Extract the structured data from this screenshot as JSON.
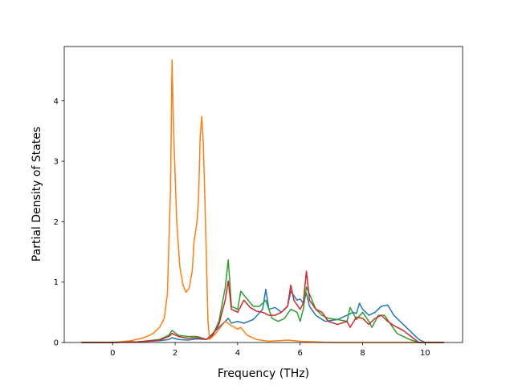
{
  "chart_data": {
    "type": "line",
    "title": "",
    "xlabel": "Frequency (THz)",
    "ylabel": "Partial Density of States",
    "xlim": [
      -1.55,
      11.2
    ],
    "ylim": [
      0,
      4.9
    ],
    "xticks": [
      0,
      2,
      4,
      6,
      8,
      10
    ],
    "yticks": [
      0,
      1,
      2,
      3,
      4
    ],
    "grid": false,
    "legend": "none",
    "series": [
      {
        "color": "#1f77b4",
        "points": [
          [
            -1.0,
            0
          ],
          [
            0,
            0
          ],
          [
            0.8,
            0.01
          ],
          [
            1.5,
            0.03
          ],
          [
            1.8,
            0.05
          ],
          [
            1.9,
            0.08
          ],
          [
            2.1,
            0.05
          ],
          [
            2.4,
            0.04
          ],
          [
            2.7,
            0.06
          ],
          [
            3.0,
            0.05
          ],
          [
            3.3,
            0.2
          ],
          [
            3.5,
            0.3
          ],
          [
            3.7,
            0.4
          ],
          [
            3.8,
            0.32
          ],
          [
            4.0,
            0.35
          ],
          [
            4.2,
            0.32
          ],
          [
            4.5,
            0.38
          ],
          [
            4.8,
            0.55
          ],
          [
            4.9,
            0.88
          ],
          [
            5.0,
            0.55
          ],
          [
            5.2,
            0.58
          ],
          [
            5.4,
            0.5
          ],
          [
            5.6,
            0.6
          ],
          [
            5.7,
            0.85
          ],
          [
            5.9,
            0.7
          ],
          [
            6.0,
            0.72
          ],
          [
            6.1,
            0.65
          ],
          [
            6.2,
            0.82
          ],
          [
            6.3,
            0.6
          ],
          [
            6.5,
            0.45
          ],
          [
            6.8,
            0.35
          ],
          [
            7.2,
            0.38
          ],
          [
            7.5,
            0.45
          ],
          [
            7.7,
            0.5
          ],
          [
            7.8,
            0.48
          ],
          [
            7.9,
            0.65
          ],
          [
            8.0,
            0.55
          ],
          [
            8.2,
            0.45
          ],
          [
            8.4,
            0.5
          ],
          [
            8.6,
            0.6
          ],
          [
            8.8,
            0.62
          ],
          [
            9.0,
            0.45
          ],
          [
            9.3,
            0.3
          ],
          [
            9.6,
            0.15
          ],
          [
            9.8,
            0.05
          ],
          [
            10.0,
            0
          ],
          [
            10.6,
            0
          ]
        ]
      },
      {
        "color": "#ff7f0e",
        "points": [
          [
            -1.0,
            0
          ],
          [
            0,
            0
          ],
          [
            0.6,
            0.03
          ],
          [
            1.0,
            0.08
          ],
          [
            1.3,
            0.15
          ],
          [
            1.5,
            0.25
          ],
          [
            1.65,
            0.4
          ],
          [
            1.75,
            0.8
          ],
          [
            1.85,
            2.5
          ],
          [
            1.9,
            4.68
          ],
          [
            1.95,
            3.5
          ],
          [
            2.05,
            2.0
          ],
          [
            2.15,
            1.25
          ],
          [
            2.25,
            0.95
          ],
          [
            2.35,
            0.83
          ],
          [
            2.45,
            0.9
          ],
          [
            2.55,
            1.2
          ],
          [
            2.6,
            1.65
          ],
          [
            2.7,
            2.0
          ],
          [
            2.75,
            2.4
          ],
          [
            2.8,
            3.4
          ],
          [
            2.85,
            3.74
          ],
          [
            2.9,
            3.3
          ],
          [
            2.95,
            2.4
          ],
          [
            3.0,
            1.4
          ],
          [
            3.05,
            0.35
          ],
          [
            3.1,
            0.05
          ],
          [
            3.3,
            0.15
          ],
          [
            3.6,
            0.35
          ],
          [
            3.8,
            0.28
          ],
          [
            4.0,
            0.22
          ],
          [
            4.1,
            0.25
          ],
          [
            4.3,
            0.12
          ],
          [
            4.6,
            0.05
          ],
          [
            5.0,
            0.02
          ],
          [
            5.6,
            0.04
          ],
          [
            6.0,
            0.02
          ],
          [
            6.5,
            0.01
          ],
          [
            7.0,
            0
          ],
          [
            10.6,
            0
          ]
        ]
      },
      {
        "color": "#2ca02c",
        "points": [
          [
            -1.0,
            0
          ],
          [
            0,
            0
          ],
          [
            0.8,
            0.01
          ],
          [
            1.5,
            0.05
          ],
          [
            1.8,
            0.12
          ],
          [
            1.9,
            0.2
          ],
          [
            2.1,
            0.12
          ],
          [
            2.4,
            0.1
          ],
          [
            2.7,
            0.1
          ],
          [
            3.0,
            0.05
          ],
          [
            3.2,
            0.12
          ],
          [
            3.4,
            0.35
          ],
          [
            3.6,
            0.9
          ],
          [
            3.7,
            1.37
          ],
          [
            3.8,
            0.6
          ],
          [
            4.0,
            0.55
          ],
          [
            4.1,
            0.85
          ],
          [
            4.3,
            0.72
          ],
          [
            4.5,
            0.6
          ],
          [
            4.7,
            0.6
          ],
          [
            4.9,
            0.7
          ],
          [
            5.1,
            0.4
          ],
          [
            5.3,
            0.35
          ],
          [
            5.5,
            0.4
          ],
          [
            5.7,
            0.55
          ],
          [
            5.9,
            0.5
          ],
          [
            6.0,
            0.35
          ],
          [
            6.1,
            0.55
          ],
          [
            6.2,
            0.92
          ],
          [
            6.3,
            0.8
          ],
          [
            6.5,
            0.55
          ],
          [
            6.7,
            0.45
          ],
          [
            6.9,
            0.4
          ],
          [
            7.2,
            0.38
          ],
          [
            7.5,
            0.35
          ],
          [
            7.6,
            0.58
          ],
          [
            7.8,
            0.38
          ],
          [
            8.0,
            0.5
          ],
          [
            8.2,
            0.35
          ],
          [
            8.3,
            0.25
          ],
          [
            8.5,
            0.45
          ],
          [
            8.7,
            0.45
          ],
          [
            8.9,
            0.3
          ],
          [
            9.1,
            0.15
          ],
          [
            9.5,
            0.05
          ],
          [
            9.8,
            0
          ],
          [
            10.6,
            0
          ]
        ]
      },
      {
        "color": "#d62728",
        "points": [
          [
            -1.0,
            0
          ],
          [
            0,
            0
          ],
          [
            0.8,
            0.01
          ],
          [
            1.5,
            0.04
          ],
          [
            1.8,
            0.1
          ],
          [
            1.9,
            0.15
          ],
          [
            2.1,
            0.1
          ],
          [
            2.4,
            0.07
          ],
          [
            2.7,
            0.08
          ],
          [
            3.0,
            0.05
          ],
          [
            3.2,
            0.12
          ],
          [
            3.4,
            0.3
          ],
          [
            3.6,
            0.7
          ],
          [
            3.7,
            1.02
          ],
          [
            3.8,
            0.55
          ],
          [
            4.0,
            0.5
          ],
          [
            4.2,
            0.7
          ],
          [
            4.4,
            0.58
          ],
          [
            4.6,
            0.52
          ],
          [
            4.8,
            0.5
          ],
          [
            5.0,
            0.45
          ],
          [
            5.2,
            0.45
          ],
          [
            5.4,
            0.5
          ],
          [
            5.6,
            0.6
          ],
          [
            5.7,
            0.95
          ],
          [
            5.8,
            0.7
          ],
          [
            6.0,
            0.55
          ],
          [
            6.1,
            0.65
          ],
          [
            6.2,
            1.18
          ],
          [
            6.3,
            0.7
          ],
          [
            6.5,
            0.55
          ],
          [
            6.7,
            0.5
          ],
          [
            6.9,
            0.35
          ],
          [
            7.2,
            0.3
          ],
          [
            7.5,
            0.35
          ],
          [
            7.6,
            0.25
          ],
          [
            7.8,
            0.42
          ],
          [
            8.0,
            0.4
          ],
          [
            8.2,
            0.3
          ],
          [
            8.4,
            0.4
          ],
          [
            8.6,
            0.45
          ],
          [
            8.8,
            0.35
          ],
          [
            9.0,
            0.28
          ],
          [
            9.3,
            0.2
          ],
          [
            9.6,
            0.08
          ],
          [
            9.8,
            0
          ],
          [
            10.6,
            0
          ]
        ]
      }
    ]
  }
}
